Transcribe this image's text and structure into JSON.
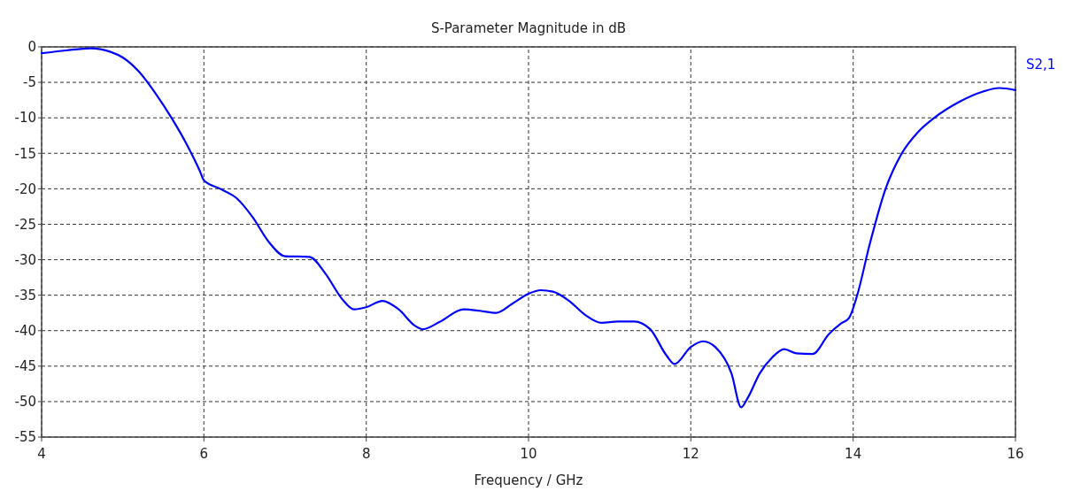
{
  "chart_data": {
    "type": "line",
    "title": "S-Parameter Magnitude in dB",
    "xlabel": "Frequency / GHz",
    "xlim": [
      4,
      16
    ],
    "xticks": [
      4,
      6,
      8,
      10,
      12,
      14,
      16
    ],
    "ylim": [
      -55,
      0
    ],
    "yticks": [
      0,
      -5,
      -10,
      -15,
      -20,
      -25,
      -30,
      -35,
      -40,
      -45,
      -50,
      -55
    ],
    "grid": true,
    "legend": "right",
    "marker": "none",
    "line_style": "solid",
    "x": [
      4.0,
      4.3,
      4.6,
      4.85,
      5.0,
      5.2,
      5.4,
      5.6,
      5.8,
      5.95,
      6.0,
      6.2,
      6.4,
      6.6,
      6.8,
      7.0,
      7.3,
      7.5,
      7.7,
      7.85,
      8.0,
      8.2,
      8.4,
      8.6,
      8.7,
      8.9,
      9.2,
      9.4,
      9.6,
      9.8,
      10.0,
      10.15,
      10.3,
      10.5,
      10.7,
      10.9,
      11.1,
      11.3,
      11.5,
      11.7,
      11.8,
      12.0,
      12.15,
      12.3,
      12.5,
      12.62,
      12.7,
      12.85,
      13.0,
      13.15,
      13.3,
      13.5,
      13.7,
      13.85,
      13.95,
      14.05,
      14.2,
      14.4,
      14.6,
      14.8,
      15.0,
      15.3,
      15.6,
      15.8,
      16.0
    ],
    "series": [
      {
        "name": "S2,1",
        "color": "#0000ff",
        "values": [
          -0.9,
          -0.5,
          -0.2,
          -0.7,
          -1.5,
          -3.5,
          -6.5,
          -10,
          -14,
          -17.5,
          -18.8,
          -20,
          -21.3,
          -24,
          -27.5,
          -29.5,
          -29.6,
          -32,
          -35.5,
          -37,
          -36.7,
          -35.8,
          -37,
          -39.3,
          -39.8,
          -38.8,
          -37,
          -37.2,
          -37.5,
          -36.2,
          -34.8,
          -34.3,
          -34.5,
          -35.8,
          -37.8,
          -38.9,
          -38.7,
          -38.7,
          -39.8,
          -43.5,
          -44.7,
          -42.3,
          -41.5,
          -42.3,
          -46,
          -50.8,
          -49.5,
          -46,
          -43.8,
          -42.6,
          -43.2,
          -43.3,
          -40.5,
          -39,
          -38.2,
          -35,
          -28,
          -20,
          -15,
          -12,
          -10,
          -7.8,
          -6.3,
          -5.8,
          -6.1
        ]
      }
    ]
  }
}
